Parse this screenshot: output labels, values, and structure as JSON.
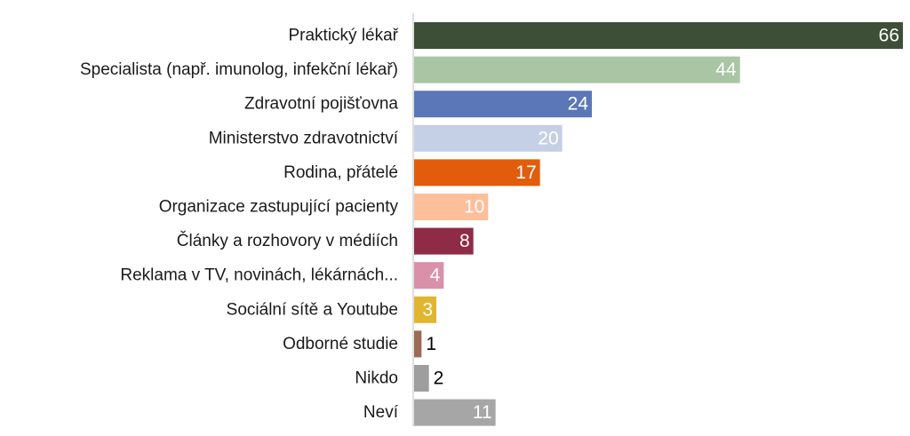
{
  "chart_data": {
    "type": "bar",
    "orientation": "horizontal",
    "categories": [
      "Praktický lékař",
      "Specialista (např. imunolog, infekční lékař)",
      "Zdravotní pojišťovna",
      "Ministerstvo zdravotnictví",
      "Rodina, přátelé",
      "Organizace zastupující pacienty",
      "Články a rozhovory v médiích",
      "Reklama v TV, novinách, lékárnách...",
      "Sociální sítě a Youtube",
      "Odborné studie",
      "Nikdo",
      "Neví"
    ],
    "values": [
      66,
      44,
      24,
      20,
      17,
      10,
      8,
      4,
      3,
      1,
      2,
      11
    ],
    "value_labels": [
      "66",
      "44",
      "24",
      "20",
      "17",
      "10",
      "8",
      "4",
      "3",
      "1",
      "2",
      "11"
    ],
    "colors": [
      "#3d4f36",
      "#a9c5a3",
      "#5b77b8",
      "#c5d0e6",
      "#e25d0b",
      "#fdbf9a",
      "#8f2b46",
      "#d990a8",
      "#e2b531",
      "#9c6a56",
      "#9e9e9e",
      "#a6a6a6"
    ],
    "label_colors": [
      "#ffffff",
      "#ffffff",
      "#ffffff",
      "#ffffff",
      "#ffffff",
      "#ffffff",
      "#ffffff",
      "#ffffff",
      "#ffffff",
      "#000000",
      "#000000",
      "#ffffff"
    ],
    "xlim": [
      0,
      66
    ],
    "grid": false,
    "legend": "none"
  }
}
